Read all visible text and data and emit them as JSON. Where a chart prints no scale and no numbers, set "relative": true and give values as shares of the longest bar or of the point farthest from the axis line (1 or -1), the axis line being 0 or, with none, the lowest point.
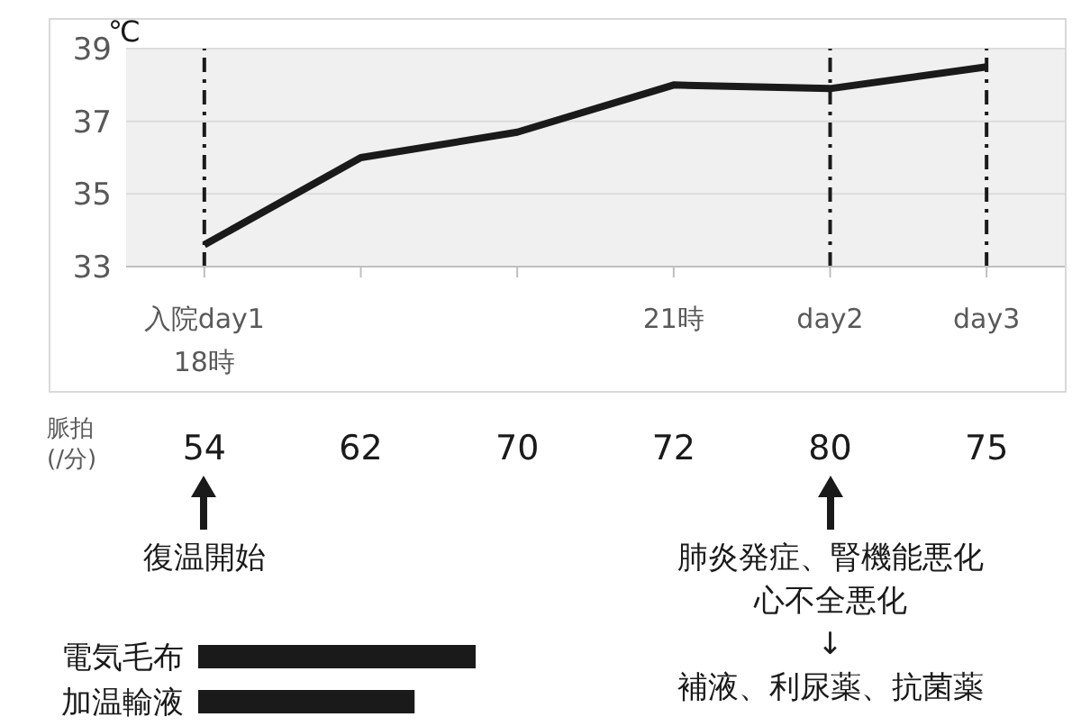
{
  "chart_data": [
    {
      "type": "line",
      "categories": [
        "入院day1 18時",
        null,
        null,
        "21時",
        "day2",
        "day3"
      ],
      "ylim": [
        33,
        39
      ],
      "yticks": [
        33,
        35,
        37,
        39
      ],
      "ylabel": "℃",
      "grid": "y",
      "marker": "none",
      "series": [
        {
          "color": "#1a1a1a",
          "values": [
            33.6,
            36.0,
            36.7,
            38.0,
            37.9,
            38.5
          ]
        }
      ],
      "ref_lines": [
        {
          "axis": "x",
          "value": "入院day1 18時",
          "color": "#1a1a1a",
          "line_style": "dashed"
        },
        {
          "axis": "x",
          "value": "day2",
          "color": "#1a1a1a",
          "line_style": "dashed"
        },
        {
          "axis": "x",
          "value": "day3",
          "color": "#1a1a1a",
          "line_style": "dashed"
        }
      ]
    },
    {
      "type": "other",
      "categories": [
        null,
        null,
        null,
        null,
        null,
        null
      ],
      "values": [
        54,
        62,
        70,
        72,
        80,
        75
      ],
      "data_labels": true,
      "ylabel": "脈拍(/分)",
      "annotations": [
        "復温開始",
        "肺炎発症、腎機能悪化",
        "心不全悪化",
        "↓",
        "補液、利尿薬、抗菌薬"
      ]
    },
    {
      "type": "bar",
      "orientation": "horizontal",
      "relative": true,
      "categories": [
        "電気毛布",
        "加温輸液"
      ],
      "values": [
        1,
        0.78
      ],
      "color": "#1a1a1a"
    }
  ]
}
